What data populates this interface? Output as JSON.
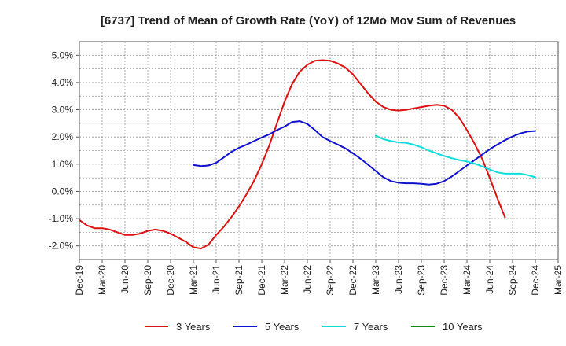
{
  "chart_data": {
    "type": "line",
    "title": "[6737]  Trend of Mean of Growth Rate (YoY) of 12Mo Mov Sum of Revenues",
    "xlabel": "",
    "ylabel": "",
    "ylim": [
      -2.5,
      5.5
    ],
    "y_ticks": [
      -2.0,
      -1.0,
      0.0,
      1.0,
      2.0,
      3.0,
      4.0,
      5.0
    ],
    "y_tick_labels": [
      "-2.0%",
      "-1.0%",
      "0.0%",
      "1.0%",
      "2.0%",
      "3.0%",
      "4.0%",
      "5.0%"
    ],
    "x_tick_labels": [
      "Dec-19",
      "Mar-20",
      "Jun-20",
      "Sep-20",
      "Dec-20",
      "Mar-21",
      "Jun-21",
      "Sep-21",
      "Dec-21",
      "Mar-22",
      "Jun-22",
      "Sep-22",
      "Dec-22",
      "Mar-23",
      "Jun-23",
      "Sep-23",
      "Dec-23",
      "Mar-24",
      "Jun-24",
      "Sep-24",
      "Dec-24",
      "Mar-25"
    ],
    "grid": true,
    "legend_position": "bottom",
    "series": [
      {
        "name": "3 Years",
        "color": "#dd1111",
        "start_index": 0,
        "values": [
          -1.05,
          -1.25,
          -1.35,
          -1.35,
          -1.4,
          -1.5,
          -1.6,
          -1.6,
          -1.55,
          -1.45,
          -1.4,
          -1.45,
          -1.55,
          -1.7,
          -1.85,
          -2.05,
          -2.1,
          -1.95,
          -1.6,
          -1.3,
          -0.95,
          -0.55,
          -0.1,
          0.4,
          1.0,
          1.7,
          2.5,
          3.3,
          3.95,
          4.4,
          4.65,
          4.8,
          4.82,
          4.8,
          4.7,
          4.55,
          4.3,
          3.95,
          3.6,
          3.3,
          3.1,
          3.0,
          2.97,
          3.0,
          3.05,
          3.1,
          3.15,
          3.18,
          3.15,
          3.0,
          2.7,
          2.25,
          1.75,
          1.2,
          0.5,
          -0.25,
          -0.95
        ]
      },
      {
        "name": "5 Years",
        "color": "#1111cc",
        "start_index": 15,
        "values": [
          0.97,
          0.93,
          0.95,
          1.05,
          1.25,
          1.45,
          1.6,
          1.72,
          1.85,
          1.98,
          2.1,
          2.25,
          2.38,
          2.55,
          2.58,
          2.48,
          2.25,
          2.0,
          1.85,
          1.72,
          1.58,
          1.4,
          1.2,
          0.98,
          0.75,
          0.52,
          0.38,
          0.32,
          0.3,
          0.3,
          0.28,
          0.25,
          0.28,
          0.38,
          0.55,
          0.75,
          0.95,
          1.15,
          1.35,
          1.55,
          1.72,
          1.88,
          2.02,
          2.13,
          2.2,
          2.22
        ]
      },
      {
        "name": "7 Years",
        "color": "#11dddd",
        "start_index": 39,
        "values": [
          2.05,
          1.92,
          1.85,
          1.8,
          1.78,
          1.72,
          1.62,
          1.5,
          1.4,
          1.3,
          1.22,
          1.15,
          1.1,
          1.02,
          0.92,
          0.8,
          0.7,
          0.65,
          0.65,
          0.65,
          0.6,
          0.52
        ]
      },
      {
        "name": "10 Years",
        "color": "#118811",
        "start_index": 0,
        "values": []
      }
    ]
  }
}
